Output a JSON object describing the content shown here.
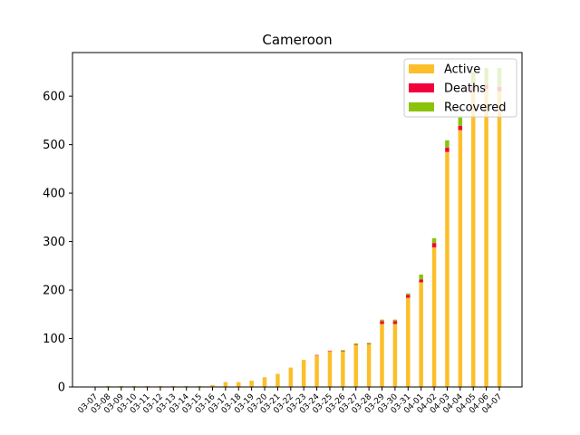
{
  "chart_data": {
    "type": "bar",
    "stacked": true,
    "title": "Cameroon",
    "xlabel": "",
    "ylabel": "",
    "ylim": [
      0,
      690
    ],
    "yticks": [
      0,
      100,
      200,
      300,
      400,
      500,
      600
    ],
    "legend_position": "top-right",
    "grid": false,
    "colors": {
      "Active": "#fbbf2a",
      "Deaths": "#f0003c",
      "Recovered": "#8ac30a"
    },
    "categories": [
      "03-07",
      "03-08",
      "03-09",
      "03-10",
      "03-11",
      "03-12",
      "03-13",
      "03-14",
      "03-15",
      "03-16",
      "03-17",
      "03-18",
      "03-19",
      "03-20",
      "03-21",
      "03-22",
      "03-23",
      "03-24",
      "03-25",
      "03-26",
      "03-27",
      "03-28",
      "03-29",
      "03-30",
      "03-31",
      "04-01",
      "04-02",
      "04-03",
      "04-04",
      "04-05",
      "04-06",
      "04-07"
    ],
    "series": [
      {
        "name": "Active",
        "values": [
          1,
          2,
          2,
          2,
          2,
          2,
          2,
          2,
          2,
          4,
          10,
          10,
          13,
          20,
          27,
          40,
          56,
          65,
          74,
          73,
          87,
          88,
          130,
          130,
          184,
          216,
          288,
          485,
          530,
          610,
          615,
          610
        ]
      },
      {
        "name": "Deaths",
        "values": [
          0,
          0,
          0,
          0,
          0,
          0,
          0,
          0,
          0,
          0,
          0,
          0,
          0,
          0,
          0,
          0,
          0,
          1,
          1,
          1,
          1,
          1,
          6,
          6,
          6,
          6,
          9,
          9,
          9,
          9,
          9,
          9
        ]
      },
      {
        "name": "Recovered",
        "values": [
          0,
          0,
          0,
          0,
          0,
          0,
          0,
          0,
          0,
          0,
          0,
          0,
          0,
          0,
          0,
          0,
          0,
          0,
          0,
          2,
          2,
          2,
          3,
          3,
          3,
          10,
          10,
          15,
          17,
          30,
          34,
          39
        ]
      }
    ]
  }
}
